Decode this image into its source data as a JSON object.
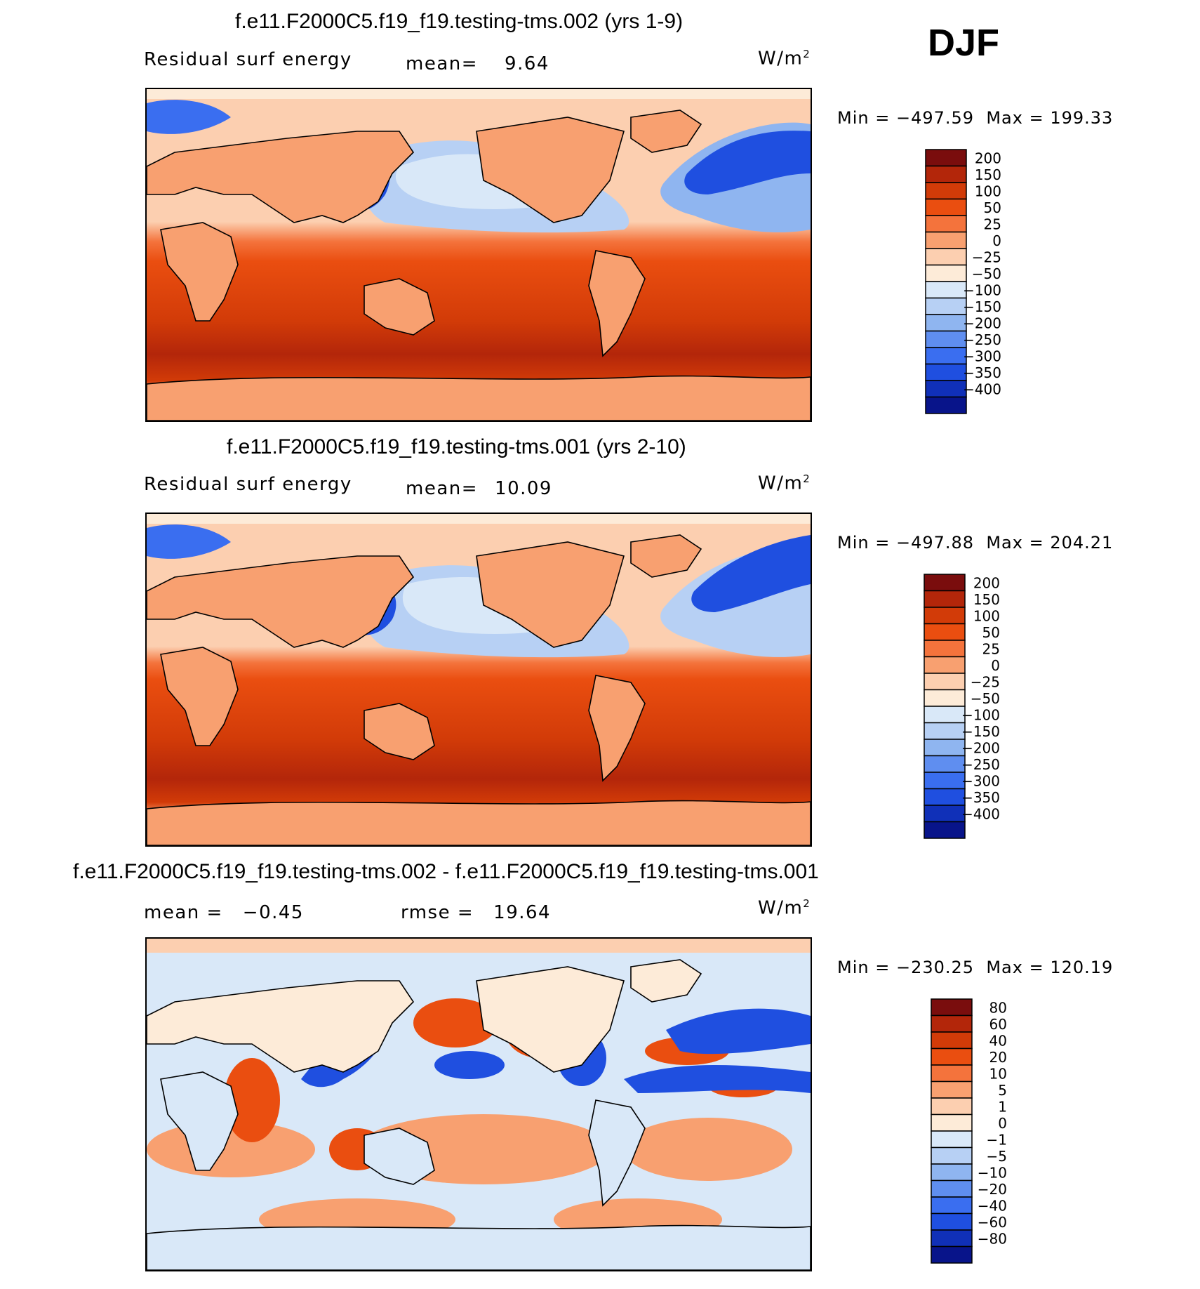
{
  "season": "DJF",
  "units_label": "W/m",
  "units_exp": "2",
  "chart_data": [
    {
      "type": "heatmap",
      "title": "f.e11.F2000C5.f19_f19.testing-tms.002 (yrs 1-9)",
      "left_label": "Residual surf energy",
      "stat_label": "mean=",
      "stat_value": "9.64",
      "min_label": "Min",
      "min_value": "−497.59",
      "max_label": "Max",
      "max_value": "199.33",
      "levels": [
        "200",
        "150",
        "100",
        "50",
        "25",
        "0",
        "−25",
        "−50",
        "−100",
        "−150",
        "−200",
        "−250",
        "−300",
        "−350",
        "−400"
      ],
      "colors": [
        "#7a0d0d",
        "#b3260a",
        "#d23b08",
        "#ea4e10",
        "#f4733c",
        "#f8a070",
        "#fccfb0",
        "#fdebd8",
        "#d9e8f8",
        "#b7d0f4",
        "#8fb5f0",
        "#5f8ef0",
        "#3a6ef0",
        "#1f4fe0",
        "#1030b8",
        "#08148a"
      ]
    },
    {
      "type": "heatmap",
      "title": "f.e11.F2000C5.f19_f19.testing-tms.001 (yrs 2-10)",
      "left_label": "Residual surf energy",
      "stat_label": "mean=",
      "stat_value": "10.09",
      "min_label": "Min",
      "min_value": "−497.88",
      "max_label": "Max",
      "max_value": "204.21",
      "levels": [
        "200",
        "150",
        "100",
        "50",
        "25",
        "0",
        "−25",
        "−50",
        "−100",
        "−150",
        "−200",
        "−250",
        "−300",
        "−350",
        "−400"
      ],
      "colors": [
        "#7a0d0d",
        "#b3260a",
        "#d23b08",
        "#ea4e10",
        "#f4733c",
        "#f8a070",
        "#fccfb0",
        "#fdebd8",
        "#d9e8f8",
        "#b7d0f4",
        "#8fb5f0",
        "#5f8ef0",
        "#3a6ef0",
        "#1f4fe0",
        "#1030b8",
        "#08148a"
      ]
    },
    {
      "type": "heatmap",
      "title": "f.e11.F2000C5.f19_f19.testing-tms.002 - f.e11.F2000C5.f19_f19.testing-tms.001",
      "left_label": "mean =",
      "left_value": "−0.45",
      "stat_label": "rmse =",
      "stat_value": "19.64",
      "min_label": "Min",
      "min_value": "−230.25",
      "max_label": "Max",
      "max_value": "120.19",
      "levels": [
        "80",
        "60",
        "40",
        "20",
        "10",
        "5",
        "1",
        "0",
        "−1",
        "−5",
        "−10",
        "−20",
        "−40",
        "−60",
        "−80"
      ],
      "colors": [
        "#7a0d0d",
        "#b3260a",
        "#d23b08",
        "#ea4e10",
        "#f4733c",
        "#f8a070",
        "#fccfb0",
        "#fdebd8",
        "#d9e8f8",
        "#b7d0f4",
        "#8fb5f0",
        "#5f8ef0",
        "#3a6ef0",
        "#1f4fe0",
        "#1030b8",
        "#08148a"
      ]
    }
  ]
}
